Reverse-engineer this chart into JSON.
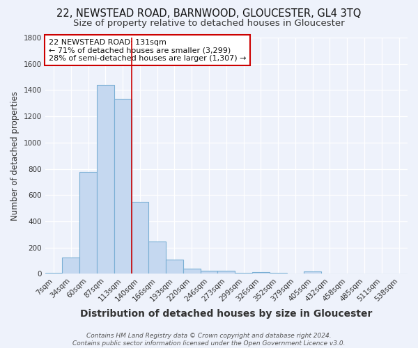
{
  "title_line1": "22, NEWSTEAD ROAD, BARNWOOD, GLOUCESTER, GL4 3TQ",
  "title_line2": "Size of property relative to detached houses in Gloucester",
  "xlabel": "Distribution of detached houses by size in Gloucester",
  "ylabel": "Number of detached properties",
  "bar_labels": [
    "7sqm",
    "34sqm",
    "60sqm",
    "87sqm",
    "113sqm",
    "140sqm",
    "166sqm",
    "193sqm",
    "220sqm",
    "246sqm",
    "273sqm",
    "299sqm",
    "326sqm",
    "352sqm",
    "379sqm",
    "405sqm",
    "432sqm",
    "458sqm",
    "485sqm",
    "511sqm",
    "538sqm"
  ],
  "bar_values": [
    10,
    125,
    775,
    1440,
    1335,
    550,
    245,
    110,
    38,
    25,
    25,
    8,
    15,
    8,
    0,
    18,
    0,
    0,
    0,
    0,
    0
  ],
  "bar_color": "#c5d8f0",
  "bar_edge_color": "#7aafd4",
  "background_color": "#eef2fb",
  "grid_color": "#ffffff",
  "vline_x": 4.5,
  "vline_color": "#cc0000",
  "annotation_text_line1": "22 NEWSTEAD ROAD: 131sqm",
  "annotation_text_line2": "← 71% of detached houses are smaller (3,299)",
  "annotation_text_line3": "28% of semi-detached houses are larger (1,307) →",
  "annotation_box_color": "#ffffff",
  "annotation_edge_color": "#cc0000",
  "footer_line1": "Contains HM Land Registry data © Crown copyright and database right 2024.",
  "footer_line2": "Contains public sector information licensed under the Open Government Licence v3.0.",
  "ylim": [
    0,
    1800
  ],
  "yticks": [
    0,
    200,
    400,
    600,
    800,
    1000,
    1200,
    1400,
    1600,
    1800
  ],
  "title_fontsize": 10.5,
  "subtitle_fontsize": 9.5,
  "xlabel_fontsize": 10,
  "ylabel_fontsize": 8.5,
  "tick_fontsize": 7.5,
  "annotation_fontsize": 8,
  "footer_fontsize": 6.5
}
